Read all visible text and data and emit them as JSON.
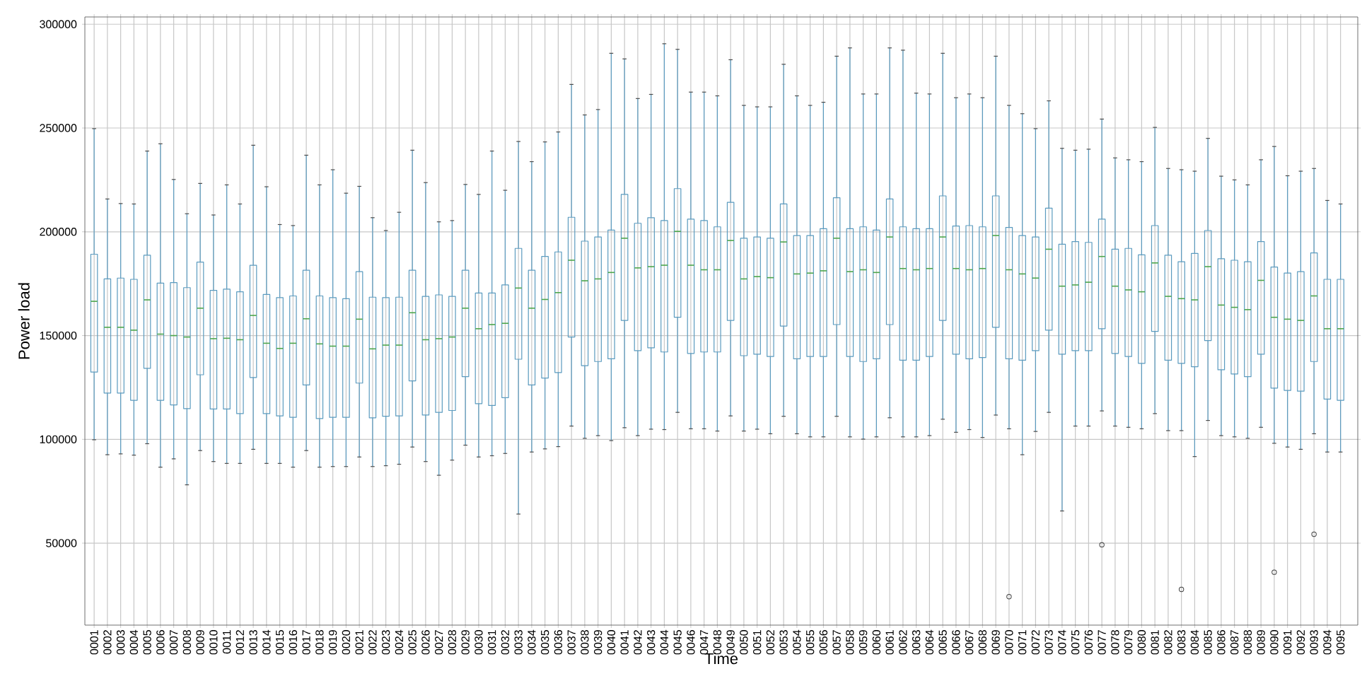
{
  "chart_data": {
    "type": "box",
    "xlabel": "Time",
    "ylabel": "Power  load",
    "grid": true,
    "ylim": [
      10500,
      303500
    ],
    "yticks": [
      50000,
      100000,
      150000,
      200000,
      250000,
      300000
    ],
    "categories": [
      "0001",
      "0002",
      "0003",
      "0004",
      "0005",
      "0006",
      "0007",
      "0008",
      "0009",
      "0010",
      "0011",
      "0012",
      "0013",
      "0014",
      "0015",
      "0016",
      "0017",
      "0018",
      "0019",
      "0020",
      "0021",
      "0022",
      "0023",
      "0024",
      "0025",
      "0026",
      "0027",
      "0028",
      "0029",
      "0030",
      "0031",
      "0032",
      "0033",
      "0034",
      "0035",
      "0036",
      "0037",
      "0038",
      "0039",
      "0040",
      "0041",
      "0042",
      "0043",
      "0044",
      "0045",
      "0046",
      "0047",
      "0048",
      "0049",
      "0050",
      "0051",
      "0052",
      "0053",
      "0054",
      "0055",
      "0056",
      "0057",
      "0058",
      "0059",
      "0060",
      "0061",
      "0062",
      "0063",
      "0064",
      "0065",
      "0066",
      "0067",
      "0068",
      "0069",
      "0070",
      "0071",
      "0072",
      "0073",
      "0074",
      "0075",
      "0076",
      "0077",
      "0078",
      "0079",
      "0080",
      "0081",
      "0082",
      "0083",
      "0084",
      "0085",
      "0086",
      "0087",
      "0088",
      "0089",
      "0090",
      "0091",
      "0092",
      "0093",
      "0094",
      "0095"
    ],
    "series": [
      {
        "color": "#5b9bbf",
        "boxes": [
          {
            "low": 99800,
            "q1": 132400,
            "median": 166500,
            "q3": 189200,
            "high": 249700
          },
          {
            "low": 92600,
            "q1": 122300,
            "median": 154000,
            "q3": 177300,
            "high": 215800
          },
          {
            "low": 93000,
            "q1": 122300,
            "median": 154000,
            "q3": 177700,
            "high": 213600
          },
          {
            "low": 92400,
            "q1": 118800,
            "median": 152600,
            "q3": 177100,
            "high": 213400
          },
          {
            "low": 97900,
            "q1": 134200,
            "median": 167200,
            "q3": 188700,
            "high": 238900
          },
          {
            "low": 86600,
            "q1": 118800,
            "median": 150700,
            "q3": 175300,
            "high": 242400
          },
          {
            "low": 90600,
            "q1": 116600,
            "median": 150000,
            "q3": 175500,
            "high": 225200
          },
          {
            "low": 78100,
            "q1": 114800,
            "median": 149300,
            "q3": 173100,
            "high": 208700
          },
          {
            "low": 94600,
            "q1": 131100,
            "median": 163200,
            "q3": 185400,
            "high": 223300
          },
          {
            "low": 89300,
            "q1": 114600,
            "median": 148500,
            "q3": 171800,
            "high": 208100
          },
          {
            "low": 88400,
            "q1": 114600,
            "median": 148700,
            "q3": 172400,
            "high": 222600
          },
          {
            "low": 88400,
            "q1": 112400,
            "median": 148000,
            "q3": 171100,
            "high": 213400
          },
          {
            "low": 95200,
            "q1": 129800,
            "median": 159700,
            "q3": 183900,
            "high": 241700
          },
          {
            "low": 88400,
            "q1": 112400,
            "median": 146300,
            "q3": 169800,
            "high": 221700
          },
          {
            "low": 88400,
            "q1": 111300,
            "median": 143800,
            "q3": 168300,
            "high": 203500
          },
          {
            "low": 86600,
            "q1": 110600,
            "median": 146300,
            "q3": 169100,
            "high": 203000
          },
          {
            "low": 94600,
            "q1": 126200,
            "median": 158100,
            "q3": 181500,
            "high": 236900
          },
          {
            "low": 86600,
            "q1": 110000,
            "median": 146000,
            "q3": 169100,
            "high": 222600
          },
          {
            "low": 86900,
            "q1": 110600,
            "median": 144900,
            "q3": 168300,
            "high": 229900
          },
          {
            "low": 86900,
            "q1": 110600,
            "median": 144900,
            "q3": 167800,
            "high": 218600
          },
          {
            "low": 91500,
            "q1": 127100,
            "median": 157900,
            "q3": 180800,
            "high": 221900
          },
          {
            "low": 86900,
            "q1": 110400,
            "median": 143600,
            "q3": 168500,
            "high": 206800
          },
          {
            "low": 87300,
            "q1": 111100,
            "median": 145400,
            "q3": 168300,
            "high": 200600
          },
          {
            "low": 88000,
            "q1": 111300,
            "median": 145400,
            "q3": 168500,
            "high": 209400
          },
          {
            "low": 96300,
            "q1": 128200,
            "median": 161000,
            "q3": 181500,
            "high": 239300
          },
          {
            "low": 89300,
            "q1": 111700,
            "median": 148000,
            "q3": 168900,
            "high": 223700
          },
          {
            "low": 82700,
            "q1": 113000,
            "median": 148500,
            "q3": 169600,
            "high": 204800
          },
          {
            "low": 90000,
            "q1": 113900,
            "median": 149300,
            "q3": 168900,
            "high": 205400
          },
          {
            "low": 97200,
            "q1": 130200,
            "median": 163200,
            "q3": 181500,
            "high": 222800
          },
          {
            "low": 91500,
            "q1": 117200,
            "median": 153300,
            "q3": 170500,
            "high": 218000
          },
          {
            "low": 92100,
            "q1": 116300,
            "median": 155300,
            "q3": 170500,
            "high": 238900
          },
          {
            "low": 93200,
            "q1": 120100,
            "median": 155900,
            "q3": 174400,
            "high": 220000
          },
          {
            "low": 64000,
            "q1": 138600,
            "median": 172900,
            "q3": 192000,
            "high": 243500
          },
          {
            "low": 93900,
            "q1": 126200,
            "median": 163200,
            "q3": 181500,
            "high": 233800
          },
          {
            "low": 95400,
            "q1": 129500,
            "median": 167400,
            "q3": 188100,
            "high": 243300
          },
          {
            "low": 96500,
            "q1": 132200,
            "median": 170700,
            "q3": 190300,
            "high": 248100
          },
          {
            "low": 106400,
            "q1": 149300,
            "median": 186300,
            "q3": 207000,
            "high": 271000
          },
          {
            "low": 100500,
            "q1": 135500,
            "median": 176400,
            "q3": 195500,
            "high": 256300
          },
          {
            "low": 101800,
            "q1": 137500,
            "median": 177300,
            "q3": 197500,
            "high": 258900
          },
          {
            "low": 99400,
            "q1": 138800,
            "median": 180400,
            "q3": 200800,
            "high": 286000
          },
          {
            "low": 105600,
            "q1": 157300,
            "median": 196900,
            "q3": 218000,
            "high": 283300
          },
          {
            "low": 101800,
            "q1": 142700,
            "median": 182600,
            "q3": 204100,
            "high": 264200
          },
          {
            "low": 104900,
            "q1": 144100,
            "median": 183200,
            "q3": 206800,
            "high": 266200
          },
          {
            "low": 104700,
            "q1": 142100,
            "median": 183900,
            "q3": 205400,
            "high": 290600
          },
          {
            "low": 113000,
            "q1": 158800,
            "median": 200200,
            "q3": 220800,
            "high": 287900
          },
          {
            "low": 105100,
            "q1": 141400,
            "median": 183900,
            "q3": 206100,
            "high": 267300
          },
          {
            "low": 105100,
            "q1": 142100,
            "median": 181700,
            "q3": 205400,
            "high": 267300
          },
          {
            "low": 104000,
            "q1": 142100,
            "median": 181700,
            "q3": 202400,
            "high": 265500
          },
          {
            "low": 111300,
            "q1": 157300,
            "median": 195800,
            "q3": 214200,
            "high": 282900
          },
          {
            "low": 104000,
            "q1": 140300,
            "median": 177300,
            "q3": 196900,
            "high": 260900
          },
          {
            "low": 104900,
            "q1": 141000,
            "median": 178400,
            "q3": 197500,
            "high": 260200
          },
          {
            "low": 102700,
            "q1": 139900,
            "median": 177900,
            "q3": 196900,
            "high": 260200
          },
          {
            "low": 111100,
            "q1": 154600,
            "median": 195100,
            "q3": 213400,
            "high": 280700
          },
          {
            "low": 102700,
            "q1": 138800,
            "median": 179700,
            "q3": 198200,
            "high": 265500
          },
          {
            "low": 101200,
            "q1": 139900,
            "median": 180100,
            "q3": 198200,
            "high": 260900
          },
          {
            "low": 101200,
            "q1": 139900,
            "median": 181200,
            "q3": 201500,
            "high": 262400
          },
          {
            "low": 111100,
            "q1": 155300,
            "median": 196900,
            "q3": 216400,
            "high": 284600
          },
          {
            "low": 101200,
            "q1": 139900,
            "median": 180800,
            "q3": 201500,
            "high": 288600
          },
          {
            "low": 100100,
            "q1": 137500,
            "median": 181700,
            "q3": 202400,
            "high": 266400
          },
          {
            "low": 101200,
            "q1": 138800,
            "median": 180400,
            "q3": 200800,
            "high": 266400
          },
          {
            "low": 110400,
            "q1": 155300,
            "median": 197500,
            "q3": 215800,
            "high": 288600
          },
          {
            "low": 101200,
            "q1": 138100,
            "median": 182300,
            "q3": 202400,
            "high": 287500
          },
          {
            "low": 101200,
            "q1": 138100,
            "median": 181700,
            "q3": 201500,
            "high": 266800
          },
          {
            "low": 101800,
            "q1": 139900,
            "median": 182300,
            "q3": 201500,
            "high": 266400
          },
          {
            "low": 109700,
            "q1": 157300,
            "median": 197500,
            "q3": 217300,
            "high": 286000
          },
          {
            "low": 103400,
            "q1": 141000,
            "median": 182300,
            "q3": 202800,
            "high": 264600
          },
          {
            "low": 104700,
            "q1": 138800,
            "median": 181700,
            "q3": 203000,
            "high": 266400
          },
          {
            "low": 100900,
            "q1": 139400,
            "median": 182300,
            "q3": 202400,
            "high": 264600
          },
          {
            "low": 111700,
            "q1": 154000,
            "median": 198200,
            "q3": 217300,
            "high": 284600
          },
          {
            "low": 105100,
            "q1": 138800,
            "median": 181700,
            "q3": 202100,
            "high": 260900,
            "outliers": [
              24200
            ]
          },
          {
            "low": 92600,
            "q1": 138100,
            "median": 179700,
            "q3": 198200,
            "high": 256900
          },
          {
            "low": 103800,
            "q1": 142700,
            "median": 177700,
            "q3": 197500,
            "high": 249700
          },
          {
            "low": 113000,
            "q1": 152600,
            "median": 191600,
            "q3": 211400,
            "high": 263100
          },
          {
            "low": 65500,
            "q1": 141000,
            "median": 173800,
            "q3": 194000,
            "high": 240200
          },
          {
            "low": 106400,
            "q1": 142700,
            "median": 174400,
            "q3": 195300,
            "high": 239300
          },
          {
            "low": 106400,
            "q1": 142700,
            "median": 175700,
            "q3": 194900,
            "high": 239800
          },
          {
            "low": 113700,
            "q1": 153300,
            "median": 188100,
            "q3": 206100,
            "high": 254300,
            "outliers": [
              49200
            ]
          },
          {
            "low": 106400,
            "q1": 141400,
            "median": 173800,
            "q3": 191600,
            "high": 235600
          },
          {
            "low": 105800,
            "q1": 139900,
            "median": 172000,
            "q3": 192000,
            "high": 234700
          },
          {
            "low": 105100,
            "q1": 136600,
            "median": 171100,
            "q3": 188900,
            "high": 233800
          },
          {
            "low": 112400,
            "q1": 152000,
            "median": 185000,
            "q3": 203000,
            "high": 250300
          },
          {
            "low": 104200,
            "q1": 138100,
            "median": 168900,
            "q3": 188700,
            "high": 230500
          },
          {
            "low": 104200,
            "q1": 136600,
            "median": 167800,
            "q3": 185600,
            "high": 229900,
            "outliers": [
              27700
            ]
          },
          {
            "low": 91700,
            "q1": 135000,
            "median": 167200,
            "q3": 189600,
            "high": 229200
          },
          {
            "low": 109100,
            "q1": 147600,
            "median": 183200,
            "q3": 200600,
            "high": 245000
          },
          {
            "low": 101800,
            "q1": 133500,
            "median": 164700,
            "q3": 187000,
            "high": 226800
          },
          {
            "low": 101200,
            "q1": 131500,
            "median": 163600,
            "q3": 186300,
            "high": 225000
          },
          {
            "low": 100500,
            "q1": 130200,
            "median": 162500,
            "q3": 185600,
            "high": 222600
          },
          {
            "low": 105800,
            "q1": 141000,
            "median": 176600,
            "q3": 195300,
            "high": 234700
          },
          {
            "low": 98100,
            "q1": 124700,
            "median": 158800,
            "q3": 183000,
            "high": 241100,
            "outliers": [
              36000
            ]
          },
          {
            "low": 96300,
            "q1": 123600,
            "median": 157900,
            "q3": 180100,
            "high": 227000
          },
          {
            "low": 95200,
            "q1": 123200,
            "median": 157300,
            "q3": 180800,
            "high": 229200
          },
          {
            "low": 102700,
            "q1": 137500,
            "median": 169100,
            "q3": 189800,
            "high": 230500,
            "outliers": [
              54300
            ]
          },
          {
            "low": 93900,
            "q1": 119400,
            "median": 153300,
            "q3": 177100,
            "high": 215100
          },
          {
            "low": 93900,
            "q1": 118800,
            "median": 153300,
            "q3": 177100,
            "high": 213400
          }
        ]
      }
    ]
  }
}
